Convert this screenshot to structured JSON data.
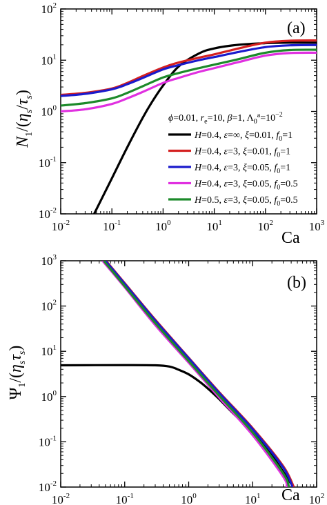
{
  "chart_data": [
    {
      "panel": "(a)",
      "type": "line",
      "xscale": "log",
      "yscale": "log",
      "xlim": [
        0.01,
        1000
      ],
      "ylim": [
        0.01,
        100
      ],
      "xlabel": "Ca",
      "ylabel": "N1/(ηs/τs)",
      "xticks": [
        0.01,
        0.1,
        1,
        10,
        100,
        1000
      ],
      "yticks": [
        0.01,
        0.1,
        1,
        10,
        100
      ],
      "xtick_labels": [
        {
          "m": "10",
          "e": "-2"
        },
        {
          "m": "10",
          "e": "-1"
        },
        {
          "m": "10",
          "e": "0"
        },
        {
          "m": "10",
          "e": "1"
        },
        {
          "m": "10",
          "e": "2"
        },
        {
          "m": "10",
          "e": "3"
        }
      ],
      "ytick_labels": [
        {
          "m": "10",
          "e": "-2"
        },
        {
          "m": "10",
          "e": "-1"
        },
        {
          "m": "10",
          "e": "0"
        },
        {
          "m": "10",
          "e": "1"
        },
        {
          "m": "10",
          "e": "2"
        }
      ],
      "legend_placement": "center-right",
      "legend_header": "ϕ=0.01, re=10, β=1, Λ0a=10−2",
      "series": [
        {
          "name": "H=0.4, ε=∞, ξ=0.01, f0=1",
          "color": "#000000",
          "x": [
            0.045,
            0.06,
            0.1,
            0.2,
            0.4,
            0.6,
            1,
            2,
            5,
            10,
            30,
            100,
            300,
            1000
          ],
          "y": [
            0.01,
            0.0178,
            0.0495,
            0.2,
            0.75,
            1.5,
            3.2,
            7.5,
            13.5,
            17,
            20,
            21.5,
            22,
            22
          ]
        },
        {
          "name": "H=0.4, ε=3, ξ=0.01, f0=1",
          "color": "#d42020",
          "x": [
            0.01,
            0.03,
            0.1,
            0.2,
            0.4,
            1,
            2,
            5,
            10,
            30,
            100,
            300,
            1000
          ],
          "y": [
            2.1,
            2.3,
            2.8,
            3.6,
            4.9,
            7.2,
            9.0,
            11.2,
            13.0,
            17.0,
            22.0,
            24.0,
            24.3
          ]
        },
        {
          "name": "H=0.4, ε=3, ξ=0.05, f0=1",
          "color": "#1a1acc",
          "x": [
            0.01,
            0.03,
            0.1,
            0.2,
            0.4,
            1,
            2,
            5,
            10,
            30,
            100,
            300,
            1000
          ],
          "y": [
            2.0,
            2.2,
            2.7,
            3.4,
            4.5,
            6.6,
            8.0,
            10.0,
            11.5,
            14.5,
            18.0,
            19.5,
            19.8
          ]
        },
        {
          "name": "H=0.4, ε=3, ξ=0.05, f0=0.5",
          "color": "#e030e0",
          "x": [
            0.01,
            0.03,
            0.1,
            0.2,
            0.4,
            1,
            2,
            5,
            10,
            30,
            100,
            300,
            1000
          ],
          "y": [
            1.0,
            1.1,
            1.4,
            1.8,
            2.4,
            3.6,
            4.5,
            5.9,
            7.0,
            9.2,
            12.3,
            13.8,
            14.0
          ]
        },
        {
          "name": "H=0.5, ε=3, ξ=0.05, f0=0.5",
          "color": "#1c8a2a",
          "x": [
            0.01,
            0.03,
            0.1,
            0.2,
            0.4,
            1,
            2,
            5,
            10,
            30,
            100,
            300,
            1000
          ],
          "y": [
            1.3,
            1.45,
            1.8,
            2.3,
            3.1,
            4.6,
            5.6,
            7.0,
            8.2,
            10.5,
            14.0,
            15.8,
            16.0
          ]
        }
      ]
    },
    {
      "panel": "(b)",
      "type": "line",
      "xscale": "log",
      "yscale": "log",
      "xlim": [
        0.01,
        100
      ],
      "ylim": [
        0.01,
        1000
      ],
      "xlabel": "Ca",
      "ylabel": "Ψ1/(ηsτs)",
      "xticks": [
        0.01,
        0.1,
        1,
        10,
        100
      ],
      "yticks": [
        0.01,
        0.1,
        1,
        10,
        100,
        1000
      ],
      "xtick_labels": [
        {
          "m": "10",
          "e": "-2"
        },
        {
          "m": "10",
          "e": "-1"
        },
        {
          "m": "10",
          "e": "0"
        },
        {
          "m": "10",
          "e": "1"
        },
        {
          "m": "10",
          "e": "2"
        }
      ],
      "ytick_labels": [
        {
          "m": "10",
          "e": "-2"
        },
        {
          "m": "10",
          "e": "-1"
        },
        {
          "m": "10",
          "e": "0"
        },
        {
          "m": "10",
          "e": "1"
        },
        {
          "m": "10",
          "e": "2"
        },
        {
          "m": "10",
          "e": "3"
        }
      ],
      "series": [
        {
          "name": "H=0.4, ε=∞, ξ=0.01, f0=1",
          "color": "#000000",
          "x": [
            0.01,
            0.1,
            0.3,
            0.5,
            0.7,
            1,
            1.5,
            2,
            3,
            5,
            10,
            20,
            40
          ],
          "y": [
            4.9,
            4.95,
            4.9,
            4.6,
            3.9,
            3.1,
            2.1,
            1.5,
            0.88,
            0.42,
            0.16,
            0.05,
            0.0118
          ]
        },
        {
          "name": "H=0.4, ε=3, ξ=0.01, f0=1",
          "color": "#d42020",
          "x": [
            0.051,
            0.1,
            0.3,
            1,
            3,
            10,
            30,
            44
          ],
          "y": [
            1000,
            320,
            50,
            7.2,
            1.25,
            0.2,
            0.029,
            0.01
          ]
        },
        {
          "name": "H=0.4, ε=3, ξ=0.05, f0=1",
          "color": "#1a1acc",
          "x": [
            0.05,
            0.1,
            0.3,
            1,
            3,
            10,
            30,
            42
          ],
          "y": [
            1000,
            310,
            48,
            7.0,
            1.2,
            0.19,
            0.027,
            0.01
          ]
        },
        {
          "name": "H=0.4, ε=3, ξ=0.05, f0=0.5",
          "color": "#e030e0",
          "x": [
            0.045,
            0.1,
            0.3,
            1,
            3,
            10,
            30,
            34
          ],
          "y": [
            1000,
            260,
            38,
            5.6,
            0.95,
            0.14,
            0.017,
            0.01
          ]
        },
        {
          "name": "H=0.5, ε=3, ξ=0.05, f0=0.5",
          "color": "#1c8a2a",
          "x": [
            0.047,
            0.1,
            0.3,
            1,
            3,
            10,
            30,
            37
          ],
          "y": [
            1000,
            275,
            42,
            6.1,
            1.05,
            0.16,
            0.02,
            0.01
          ]
        }
      ]
    }
  ]
}
